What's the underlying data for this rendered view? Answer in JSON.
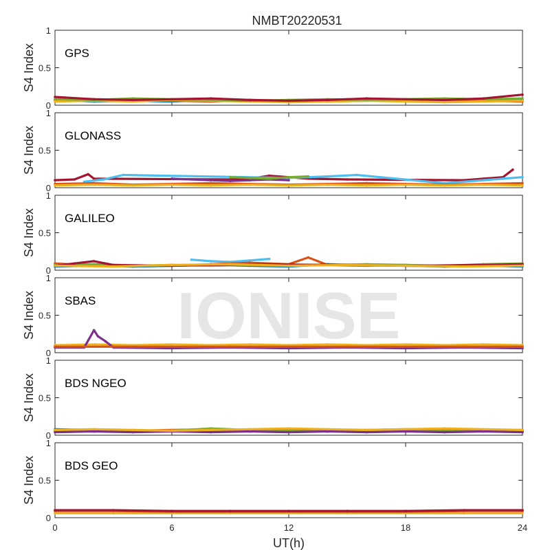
{
  "chart_data": {
    "type": "scatter",
    "title": "NMBT20220531",
    "xlabel": "UT(h)",
    "ylabel": "S4 Index",
    "xlim": [
      0,
      24
    ],
    "ylim": [
      0,
      1
    ],
    "x_ticks": [
      "0",
      "6",
      "12",
      "18",
      "24"
    ],
    "x_tick_values": [
      0,
      6,
      12,
      18,
      24
    ],
    "y_ticks": [
      "0",
      "0.5",
      "1"
    ],
    "y_tick_values": [
      0,
      0.5,
      1
    ],
    "grid": false,
    "watermark": "IONISE",
    "colors": [
      "#0072bd",
      "#d95319",
      "#edb120",
      "#7e2f8e",
      "#77ac30",
      "#4dbeee",
      "#a2142f"
    ],
    "panels": [
      {
        "label": "GPS",
        "series": [
          {
            "color": "#0072bd",
            "x": [
              0,
              2,
              4,
              6,
              8,
              10,
              12,
              14,
              16,
              18,
              20,
              22,
              24
            ],
            "y": [
              0.07,
              0.05,
              0.06,
              0.05,
              0.07,
              0.06,
              0.05,
              0.06,
              0.07,
              0.06,
              0.05,
              0.06,
              0.07
            ]
          },
          {
            "color": "#d95319",
            "x": [
              0,
              2,
              4,
              6,
              8,
              10,
              12,
              14,
              16,
              18,
              20,
              22,
              24
            ],
            "y": [
              0.06,
              0.08,
              0.07,
              0.06,
              0.05,
              0.07,
              0.06,
              0.05,
              0.06,
              0.08,
              0.07,
              0.06,
              0.05
            ]
          },
          {
            "color": "#edb120",
            "x": [
              0,
              2,
              4,
              6,
              8,
              10,
              12,
              14,
              16,
              18,
              20,
              22,
              24
            ],
            "y": [
              0.05,
              0.06,
              0.05,
              0.07,
              0.06,
              0.05,
              0.04,
              0.05,
              0.06,
              0.05,
              0.04,
              0.05,
              0.06
            ]
          },
          {
            "color": "#77ac30",
            "x": [
              0,
              2,
              4,
              6,
              8,
              10,
              12,
              14,
              16,
              18,
              20,
              22,
              24
            ],
            "y": [
              0.08,
              0.07,
              0.09,
              0.08,
              0.07,
              0.06,
              0.07,
              0.08,
              0.07,
              0.08,
              0.09,
              0.08,
              0.09
            ]
          },
          {
            "color": "#a2142f",
            "x": [
              0,
              2,
              4,
              6,
              8,
              10,
              12,
              14,
              16,
              18,
              20,
              22,
              24
            ],
            "y": [
              0.11,
              0.08,
              0.07,
              0.08,
              0.09,
              0.07,
              0.06,
              0.07,
              0.09,
              0.08,
              0.07,
              0.09,
              0.14
            ]
          }
        ]
      },
      {
        "label": "GLONASS",
        "series": [
          {
            "color": "#a2142f",
            "x": [
              0,
              1,
              1.7,
              2.0,
              9,
              10,
              11,
              13,
              15,
              21,
              22,
              23,
              23.5
            ],
            "y": [
              0.1,
              0.11,
              0.18,
              0.12,
              0.11,
              0.12,
              0.16,
              0.12,
              0.11,
              0.1,
              0.12,
              0.14,
              0.24
            ]
          },
          {
            "color": "#4dbeee",
            "x": [
              1.5,
              2.5,
              3.5,
              12,
              14,
              15.5,
              20,
              22,
              23,
              24
            ],
            "y": [
              0.08,
              0.11,
              0.17,
              0.13,
              0.15,
              0.17,
              0.06,
              0.1,
              0.12,
              0.14
            ]
          },
          {
            "color": "#7e2f8e",
            "x": [
              6,
              7,
              8,
              9,
              10,
              11,
              12
            ],
            "y": [
              0.12,
              0.11,
              0.1,
              0.09,
              0.1,
              0.11,
              0.1
            ]
          },
          {
            "color": "#77ac30",
            "x": [
              9,
              10,
              11,
              12,
              13
            ],
            "y": [
              0.14,
              0.13,
              0.12,
              0.14,
              0.15
            ]
          },
          {
            "color": "#d95319",
            "x": [
              0,
              2,
              4,
              6,
              8,
              10,
              12,
              14,
              16,
              18,
              20,
              22,
              24
            ],
            "y": [
              0.05,
              0.06,
              0.04,
              0.05,
              0.06,
              0.05,
              0.04,
              0.05,
              0.06,
              0.05,
              0.04,
              0.05,
              0.06
            ]
          },
          {
            "color": "#edb120",
            "x": [
              0,
              2,
              4,
              6,
              8,
              10,
              12,
              14,
              16,
              18,
              20,
              22,
              24
            ],
            "y": [
              0.03,
              0.04,
              0.03,
              0.04,
              0.03,
              0.04,
              0.03,
              0.04,
              0.03,
              0.04,
              0.03,
              0.04,
              0.03
            ]
          }
        ]
      },
      {
        "label": "GALILEO",
        "series": [
          {
            "color": "#4dbeee",
            "x": [
              7,
              8,
              9,
              10,
              11
            ],
            "y": [
              0.14,
              0.12,
              0.11,
              0.13,
              0.15
            ]
          },
          {
            "color": "#d95319",
            "x": [
              0,
              2,
              4,
              6,
              8,
              10,
              12,
              13,
              14,
              16,
              18,
              20,
              22,
              24
            ],
            "y": [
              0.09,
              0.06,
              0.05,
              0.06,
              0.08,
              0.1,
              0.08,
              0.17,
              0.07,
              0.06,
              0.07,
              0.05,
              0.06,
              0.07
            ]
          },
          {
            "color": "#0072bd",
            "x": [
              0,
              2,
              4,
              6,
              8,
              10,
              12,
              14,
              16,
              18,
              20,
              22,
              24
            ],
            "y": [
              0.05,
              0.06,
              0.05,
              0.06,
              0.07,
              0.06,
              0.05,
              0.08,
              0.07,
              0.06,
              0.05,
              0.06,
              0.05
            ]
          },
          {
            "color": "#77ac30",
            "x": [
              0,
              2,
              4,
              6,
              8,
              10,
              12,
              14,
              16,
              18,
              20,
              22,
              24
            ],
            "y": [
              0.07,
              0.08,
              0.06,
              0.07,
              0.06,
              0.07,
              0.06,
              0.07,
              0.08,
              0.07,
              0.06,
              0.08,
              0.09
            ]
          },
          {
            "color": "#a2142f",
            "x": [
              0,
              1,
              2,
              3,
              6,
              10,
              14,
              18,
              22,
              24
            ],
            "y": [
              0.06,
              0.09,
              0.12,
              0.07,
              0.06,
              0.08,
              0.07,
              0.06,
              0.07,
              0.08
            ]
          },
          {
            "color": "#edb120",
            "x": [
              0,
              3,
              6,
              9,
              12,
              15,
              18,
              21,
              24
            ],
            "y": [
              0.06,
              0.05,
              0.07,
              0.08,
              0.06,
              0.07,
              0.06,
              0.05,
              0.06
            ]
          }
        ]
      },
      {
        "label": "SBAS",
        "series": [
          {
            "color": "#edb120",
            "x": [
              0,
              2,
              4,
              6,
              8,
              10,
              12,
              14,
              16,
              18,
              20,
              22,
              24
            ],
            "y": [
              0.1,
              0.11,
              0.1,
              0.11,
              0.1,
              0.11,
              0.1,
              0.11,
              0.1,
              0.11,
              0.1,
              0.11,
              0.1
            ]
          },
          {
            "color": "#7e2f8e",
            "x": [
              0,
              1.5,
              2.0,
              2.2,
              2.6,
              3,
              6,
              9,
              12,
              15,
              18,
              21,
              24
            ],
            "y": [
              0.07,
              0.07,
              0.3,
              0.22,
              0.15,
              0.07,
              0.06,
              0.07,
              0.06,
              0.07,
              0.06,
              0.07,
              0.06
            ]
          },
          {
            "color": "#d95319",
            "x": [
              0,
              3,
              6,
              9,
              12,
              15,
              18,
              21,
              24
            ],
            "y": [
              0.08,
              0.08,
              0.08,
              0.08,
              0.08,
              0.08,
              0.08,
              0.08,
              0.08
            ]
          }
        ]
      },
      {
        "label": "BDS NGEO",
        "series": [
          {
            "color": "#0072bd",
            "x": [
              0,
              2,
              4,
              6,
              8,
              10,
              12,
              14,
              16,
              18,
              20,
              22,
              24
            ],
            "y": [
              0.08,
              0.07,
              0.06,
              0.05,
              0.06,
              0.07,
              0.08,
              0.06,
              0.05,
              0.06,
              0.07,
              0.06,
              0.05
            ]
          },
          {
            "color": "#d95319",
            "x": [
              0,
              2,
              4,
              6,
              8,
              10,
              12,
              14,
              16,
              18,
              20,
              22,
              24
            ],
            "y": [
              0.06,
              0.05,
              0.06,
              0.07,
              0.08,
              0.06,
              0.05,
              0.06,
              0.07,
              0.08,
              0.07,
              0.06,
              0.07
            ]
          },
          {
            "color": "#77ac30",
            "x": [
              0,
              2,
              4,
              6,
              8,
              10,
              12,
              14,
              16,
              18,
              20,
              22,
              24
            ],
            "y": [
              0.05,
              0.06,
              0.05,
              0.06,
              0.09,
              0.07,
              0.06,
              0.05,
              0.06,
              0.05,
              0.06,
              0.07,
              0.06
            ]
          },
          {
            "color": "#7e2f8e",
            "x": [
              0,
              2,
              4,
              6,
              8,
              10,
              12,
              14,
              16,
              18,
              20,
              22,
              24
            ],
            "y": [
              0.04,
              0.05,
              0.04,
              0.05,
              0.04,
              0.05,
              0.04,
              0.05,
              0.04,
              0.05,
              0.04,
              0.05,
              0.04
            ]
          },
          {
            "color": "#edb120",
            "x": [
              0,
              2,
              4,
              6,
              8,
              10,
              12,
              14,
              16,
              18,
              20,
              22,
              24
            ],
            "y": [
              0.07,
              0.08,
              0.07,
              0.06,
              0.07,
              0.08,
              0.09,
              0.08,
              0.07,
              0.08,
              0.09,
              0.08,
              0.07
            ]
          }
        ]
      },
      {
        "label": "BDS GEO",
        "series": [
          {
            "color": "#edb120",
            "x": [
              0,
              3,
              6,
              9,
              12,
              15,
              18,
              21,
              24
            ],
            "y": [
              0.06,
              0.06,
              0.06,
              0.06,
              0.06,
              0.06,
              0.06,
              0.06,
              0.06
            ]
          },
          {
            "color": "#d95319",
            "x": [
              0,
              3,
              6,
              9,
              12,
              15,
              18,
              21,
              24
            ],
            "y": [
              0.09,
              0.09,
              0.08,
              0.08,
              0.08,
              0.08,
              0.08,
              0.09,
              0.09
            ]
          },
          {
            "color": "#a2142f",
            "x": [
              0,
              3,
              6,
              9,
              12,
              15,
              18,
              21,
              24
            ],
            "y": [
              0.1,
              0.1,
              0.09,
              0.09,
              0.09,
              0.09,
              0.09,
              0.1,
              0.1
            ]
          }
        ]
      }
    ]
  }
}
